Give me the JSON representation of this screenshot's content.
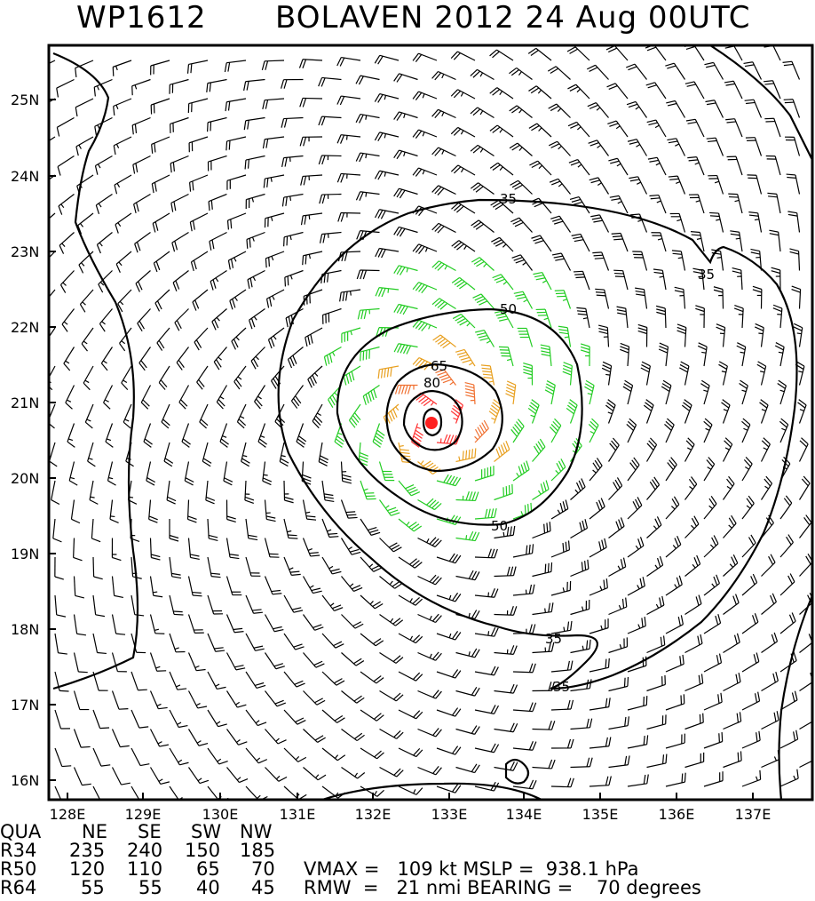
{
  "title": {
    "storm_id": "WP1612",
    "storm_info": "BOLAVEN 2012 24 Aug 00UTC"
  },
  "map": {
    "lat_labels": [
      "25N",
      "24N",
      "23N",
      "22N",
      "21N",
      "20N",
      "19N",
      "18N",
      "17N",
      "16N"
    ],
    "lon_labels": [
      "128E",
      "129E",
      "130E",
      "131E",
      "132E",
      "133E",
      "134E",
      "135E",
      "136E",
      "137E"
    ],
    "contour_labels": [
      "35",
      "35",
      "50",
      "50",
      "65",
      "80",
      "35",
      "35"
    ],
    "wind_colors": {
      "below_34kt": "#000000",
      "34_to_50kt": "#22cc22",
      "50_to_64kt": "#e8a020",
      "64_to_80kt": "#f07030",
      "above_80kt": "#ff3030",
      "center": "#ff2020"
    }
  },
  "footer": {
    "quadrant_header": [
      "QUA",
      "NE",
      "SE",
      "SW",
      "NW"
    ],
    "rows": [
      {
        "label": "R34",
        "values": [
          "235",
          "240",
          "150",
          "185"
        ]
      },
      {
        "label": "R50",
        "values": [
          "120",
          "110",
          "65",
          "70"
        ]
      },
      {
        "label": "R64",
        "values": [
          "55",
          "55",
          "40",
          "45"
        ]
      }
    ],
    "vmax_line": "VMAX =   109 kt MSLP =  938.1 hPa",
    "rmw_line": "RMW  =   21 nmi BEARING =    70 degrees"
  }
}
